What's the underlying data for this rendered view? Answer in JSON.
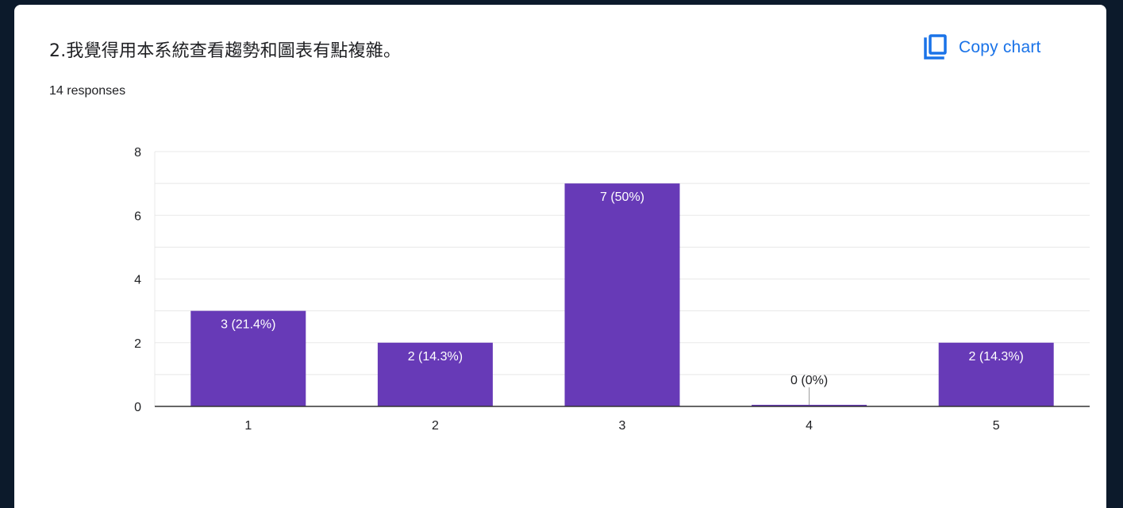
{
  "header": {
    "title": "2.我覺得用本系統查看趨勢和圖表有點複雜。",
    "responses": "14 responses",
    "copy_label": "Copy chart",
    "copy_icon": "copy-icon"
  },
  "colors": {
    "bar": "#673ab7",
    "accent": "#1a73e8",
    "grid": "#e8e8e8",
    "axis": "#333333",
    "text": "#202124"
  },
  "chart_data": {
    "type": "bar",
    "categories": [
      "1",
      "2",
      "3",
      "4",
      "5"
    ],
    "values": [
      3,
      2,
      7,
      0,
      2
    ],
    "data_labels": [
      "3 (21.4%)",
      "2 (14.3%)",
      "7 (50%)",
      "0 (0%)",
      "2 (14.3%)"
    ],
    "y_ticks": [
      0,
      2,
      4,
      6,
      8
    ],
    "ylim": [
      0,
      8
    ],
    "grid": true,
    "legend": "none"
  }
}
